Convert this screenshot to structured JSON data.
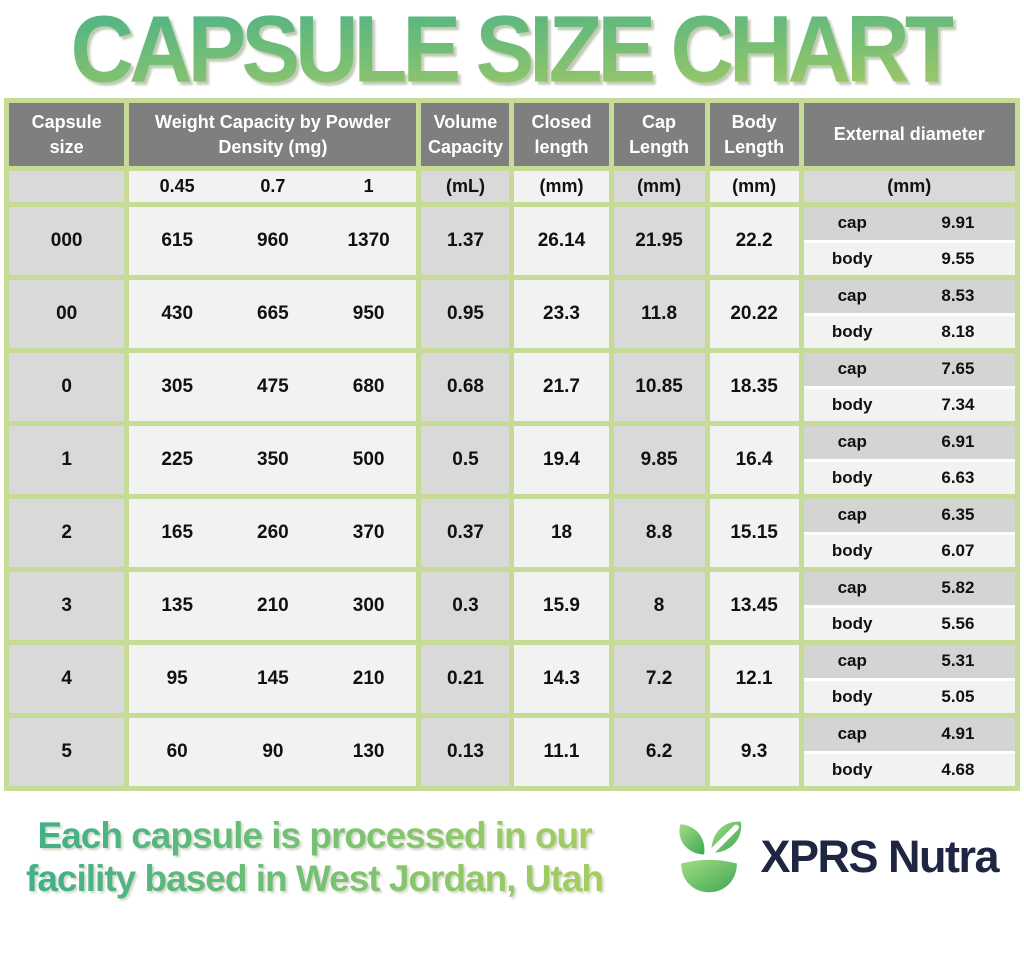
{
  "title": "CAPSULE SIZE CHART",
  "colors": {
    "border_green": "#c6db95",
    "header_gray": "#7f7f7f",
    "cell_gray": "#d9d9d9",
    "cell_light": "#f2f2f2",
    "cap_row_gray": "#d4d4d4",
    "title_green_top": "#4fb386",
    "title_green_bottom": "#a9ca63",
    "brand_navy": "#1f2642",
    "leaf_green_light": "#a3dd84",
    "leaf_green_dark": "#3fa653"
  },
  "chart_data": {
    "type": "table",
    "title": "CAPSULE SIZE CHART",
    "header": {
      "capsule_size": "Capsule size",
      "weight_capacity": "Weight Capacity by Powder Density (mg)",
      "volume_capacity": "Volume Capacity",
      "closed_length": "Closed length",
      "cap_length": "Cap Length",
      "body_length": "Body Length",
      "external_diameter": "External diameter"
    },
    "subheader": {
      "densities": [
        "0.45",
        "0.7",
        "1"
      ],
      "volume_unit": "(mL)",
      "closed_unit": "(mm)",
      "cap_unit": "(mm)",
      "body_unit": "(mm)",
      "external_unit": "(mm)"
    },
    "labels": {
      "cap": "cap",
      "body": "body"
    },
    "rows": [
      {
        "size": "000",
        "weights": [
          "615",
          "960",
          "1370"
        ],
        "volume": "1.37",
        "closed": "26.14",
        "cap_length": "21.95",
        "body_length": "22.2",
        "ext": {
          "cap": "9.91",
          "body": "9.55"
        }
      },
      {
        "size": "00",
        "weights": [
          "430",
          "665",
          "950"
        ],
        "volume": "0.95",
        "closed": "23.3",
        "cap_length": "11.8",
        "body_length": "20.22",
        "ext": {
          "cap": "8.53",
          "body": "8.18"
        }
      },
      {
        "size": "0",
        "weights": [
          "305",
          "475",
          "680"
        ],
        "volume": "0.68",
        "closed": "21.7",
        "cap_length": "10.85",
        "body_length": "18.35",
        "ext": {
          "cap": "7.65",
          "body": "7.34"
        }
      },
      {
        "size": "1",
        "weights": [
          "225",
          "350",
          "500"
        ],
        "volume": "0.5",
        "closed": "19.4",
        "cap_length": "9.85",
        "body_length": "16.4",
        "ext": {
          "cap": "6.91",
          "body": "6.63"
        }
      },
      {
        "size": "2",
        "weights": [
          "165",
          "260",
          "370"
        ],
        "volume": "0.37",
        "closed": "18",
        "cap_length": "8.8",
        "body_length": "15.15",
        "ext": {
          "cap": "6.35",
          "body": "6.07"
        }
      },
      {
        "size": "3",
        "weights": [
          "135",
          "210",
          "300"
        ],
        "volume": "0.3",
        "closed": "15.9",
        "cap_length": "8",
        "body_length": "13.45",
        "ext": {
          "cap": "5.82",
          "body": "5.56"
        }
      },
      {
        "size": "4",
        "weights": [
          "95",
          "145",
          "210"
        ],
        "volume": "0.21",
        "closed": "14.3",
        "cap_length": "7.2",
        "body_length": "12.1",
        "ext": {
          "cap": "5.31",
          "body": "5.05"
        }
      },
      {
        "size": "5",
        "weights": [
          "60",
          "90",
          "130"
        ],
        "volume": "0.13",
        "closed": "11.1",
        "cap_length": "6.2",
        "body_length": "9.3",
        "ext": {
          "cap": "4.91",
          "body": "4.68"
        }
      }
    ]
  },
  "footer": {
    "note_line1": "Each capsule is processed in our",
    "note_line2": "facility based in West Jordan, Utah",
    "brand": "XPRS Nutra"
  }
}
